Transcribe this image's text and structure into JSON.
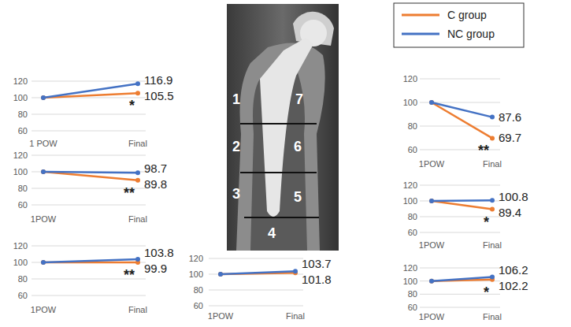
{
  "chart_data": [
    {
      "type": "line",
      "categories": [
        "1 POW",
        "Final"
      ],
      "ylim": [
        60,
        120
      ],
      "yticks": [
        60,
        80,
        100,
        120
      ],
      "grid": true,
      "data_labels": true,
      "series": [
        {
          "name": "C group",
          "color": "#ed7d31",
          "marker": "circle",
          "values": [
            100,
            105.5
          ],
          "value_labels": [
            null,
            "105.5"
          ]
        },
        {
          "name": "NC group",
          "color": "#4472c4",
          "marker": "circle",
          "values": [
            100,
            116.9
          ],
          "value_labels": [
            null,
            "116.9"
          ]
        }
      ],
      "annotations": [
        {
          "text": "*",
          "series": "C group"
        }
      ]
    },
    {
      "type": "line",
      "categories": [
        "1POW",
        "Final"
      ],
      "ylim": [
        60,
        120
      ],
      "yticks": [
        60,
        80,
        100,
        120
      ],
      "grid": true,
      "data_labels": true,
      "series": [
        {
          "name": "C group",
          "color": "#ed7d31",
          "marker": "circle",
          "values": [
            100,
            89.8
          ],
          "value_labels": [
            null,
            "89.8"
          ]
        },
        {
          "name": "NC group",
          "color": "#4472c4",
          "marker": "circle",
          "values": [
            100,
            98.7
          ],
          "value_labels": [
            null,
            "98.7"
          ]
        }
      ],
      "annotations": [
        {
          "text": "**",
          "series": "C group"
        }
      ]
    },
    {
      "type": "line",
      "categories": [
        "1POW",
        "Final"
      ],
      "ylim": [
        60,
        120
      ],
      "yticks": [
        60,
        80,
        100,
        120
      ],
      "grid": true,
      "data_labels": true,
      "series": [
        {
          "name": "C group",
          "color": "#ed7d31",
          "marker": "circle",
          "values": [
            100,
            99.9
          ],
          "value_labels": [
            null,
            "99.9"
          ]
        },
        {
          "name": "NC group",
          "color": "#4472c4",
          "marker": "circle",
          "values": [
            100,
            103.8
          ],
          "value_labels": [
            null,
            "103.8"
          ]
        }
      ],
      "annotations": [
        {
          "text": "**",
          "series": "C group"
        }
      ]
    },
    {
      "type": "line",
      "categories": [
        "1POW",
        "Final"
      ],
      "ylim": [
        60,
        120
      ],
      "yticks": [
        60,
        80,
        100,
        120
      ],
      "grid": true,
      "data_labels": true,
      "series": [
        {
          "name": "C group",
          "color": "#ed7d31",
          "marker": "circle",
          "values": [
            100,
            101.8
          ],
          "value_labels": [
            null,
            "101.8"
          ]
        },
        {
          "name": "NC group",
          "color": "#4472c4",
          "marker": "circle",
          "values": [
            100,
            103.7
          ],
          "value_labels": [
            null,
            "103.7"
          ]
        }
      ]
    },
    {
      "type": "line",
      "categories": [
        "1POW",
        "Final"
      ],
      "ylim": [
        60,
        120
      ],
      "yticks": [
        60,
        80,
        100,
        120
      ],
      "grid": true,
      "data_labels": true,
      "series": [
        {
          "name": "C group",
          "color": "#ed7d31",
          "marker": "circle",
          "values": [
            100,
            102.2
          ],
          "value_labels": [
            null,
            "102.2"
          ]
        },
        {
          "name": "NC group",
          "color": "#4472c4",
          "marker": "circle",
          "values": [
            100,
            106.2
          ],
          "value_labels": [
            null,
            "106.2"
          ]
        }
      ],
      "annotations": [
        {
          "text": "*",
          "series": "C group"
        }
      ]
    },
    {
      "type": "line",
      "categories": [
        "1POW",
        "Final"
      ],
      "ylim": [
        60,
        120
      ],
      "yticks": [
        60,
        80,
        100,
        120
      ],
      "grid": true,
      "data_labels": true,
      "series": [
        {
          "name": "C group",
          "color": "#ed7d31",
          "marker": "circle",
          "values": [
            100,
            89.4
          ],
          "value_labels": [
            null,
            "89.4"
          ]
        },
        {
          "name": "NC group",
          "color": "#4472c4",
          "marker": "circle",
          "values": [
            100,
            100.8
          ],
          "value_labels": [
            null,
            "100.8"
          ]
        }
      ],
      "annotations": [
        {
          "text": "*",
          "series": "C group"
        }
      ]
    },
    {
      "type": "line",
      "categories": [
        "1POW",
        "Final"
      ],
      "ylim": [
        60,
        120
      ],
      "yticks": [
        60,
        80,
        100,
        120
      ],
      "grid": true,
      "data_labels": true,
      "legend": "top-right",
      "series": [
        {
          "name": "C group",
          "color": "#ed7d31",
          "marker": "circle",
          "values": [
            100,
            69.7
          ],
          "value_labels": [
            null,
            "69.7"
          ]
        },
        {
          "name": "NC group",
          "color": "#4472c4",
          "marker": "circle",
          "values": [
            100,
            87.6
          ],
          "value_labels": [
            null,
            "87.6"
          ]
        }
      ],
      "annotations": [
        {
          "text": "**",
          "series": "C group"
        }
      ]
    }
  ],
  "radiograph": {
    "zones": [
      "1",
      "2",
      "3",
      "4",
      "5",
      "6",
      "7"
    ]
  }
}
